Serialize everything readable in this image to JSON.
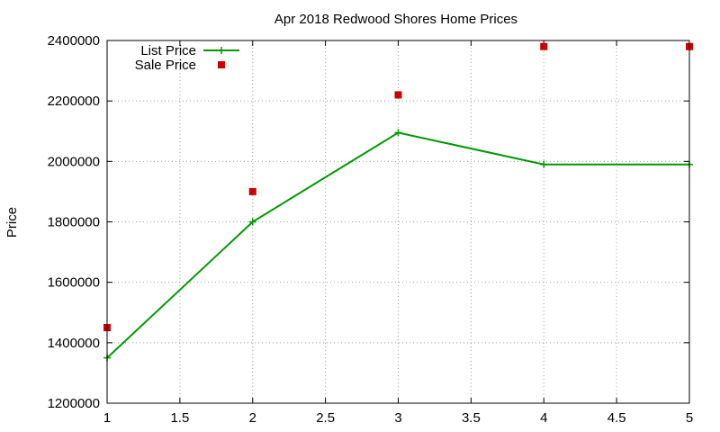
{
  "chart_data": {
    "type": "line",
    "title": "Apr 2018 Redwood Shores Home Prices",
    "xlabel": "",
    "ylabel": "Price",
    "xlim": [
      1,
      5
    ],
    "ylim": [
      1200000,
      2400000
    ],
    "x_ticks": [
      1,
      1.5,
      2,
      2.5,
      3,
      3.5,
      4,
      4.5,
      5
    ],
    "x_tick_labels": [
      "1",
      "1.5",
      "2",
      "2.5",
      "3",
      "3.5",
      "4",
      "4.5",
      "5"
    ],
    "y_ticks": [
      1200000,
      1400000,
      1600000,
      1800000,
      2000000,
      2200000,
      2400000
    ],
    "y_tick_labels": [
      "1200000",
      "1400000",
      "1600000",
      "1800000",
      "2000000",
      "2200000",
      "2400000"
    ],
    "grid": true,
    "legend_position": "top-left",
    "series": [
      {
        "name": "List Price",
        "style": "line+cross",
        "color": "#009900",
        "x": [
          1,
          2,
          3,
          4,
          5
        ],
        "y": [
          1350000,
          1800000,
          2095000,
          1990000,
          1990000
        ]
      },
      {
        "name": "Sale Price",
        "style": "square",
        "color": "#cc0000",
        "x": [
          1,
          2,
          3,
          4,
          5
        ],
        "y": [
          1450000,
          1900000,
          2220000,
          2380000,
          2380000
        ]
      }
    ]
  }
}
